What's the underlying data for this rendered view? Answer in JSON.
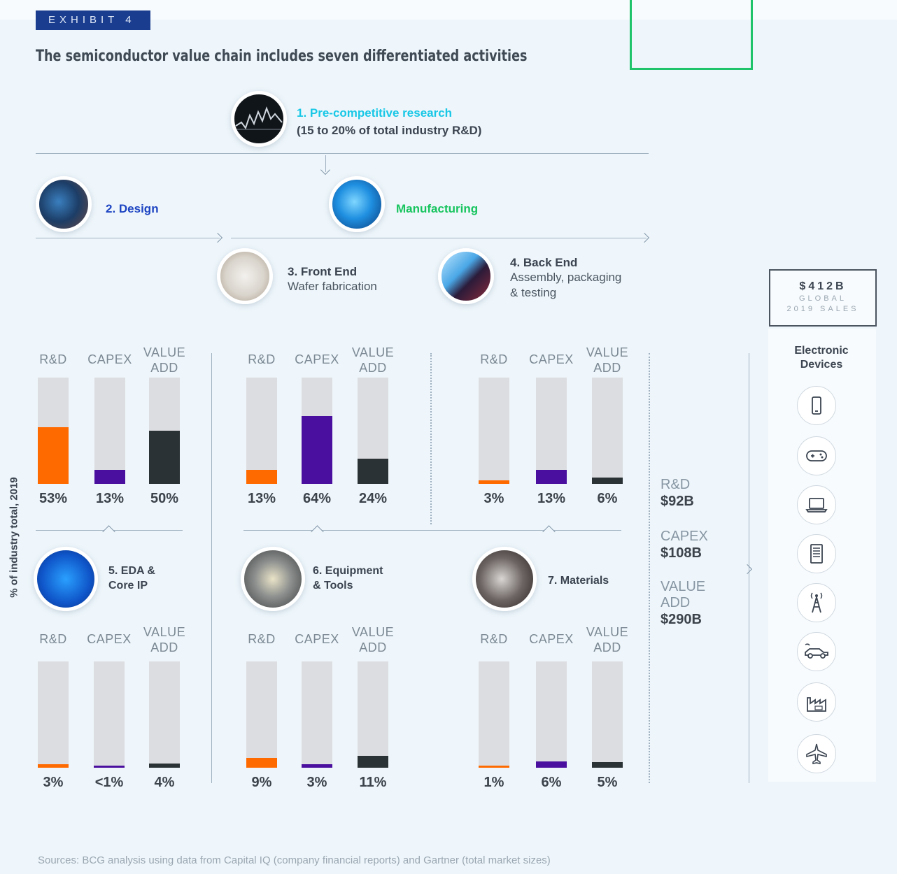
{
  "exhibit": "EXHIBIT 4",
  "title": "The semiconductor value chain includes seven differentiated activities",
  "stage1": {
    "name": "1. Pre-competitive research",
    "sub": "(15 to 20% of total industry R&D)"
  },
  "stage2": {
    "name": "2. Design"
  },
  "manufacturing": "Manufacturing",
  "stage3": {
    "name": "3. Front End",
    "sub": "Wafer fabrication"
  },
  "stage4": {
    "name": "4. Back End",
    "sub1": "Assembly, packaging",
    "sub2": "& testing"
  },
  "stage5": {
    "name1": "5. EDA &",
    "name2": "Core IP"
  },
  "stage6": {
    "name1": "6. Equipment",
    "name2": "& Tools"
  },
  "stage7": {
    "name": "7. Materials"
  },
  "y_axis_label": "% of industry total, 2019",
  "column_labels": {
    "rd": "R&D",
    "capex": "CAPEX",
    "value_add_1": "VALUE",
    "value_add_2": "ADD"
  },
  "colors": {
    "rd": "#ff6a00",
    "capex": "#4a0f9e",
    "value_add": "#2b3235",
    "background_bar": "#dcdde0",
    "manufacturing": "#17c45e",
    "research": "#18c7e6",
    "design": "#1d44c2"
  },
  "chart_data": [
    {
      "type": "bar",
      "panel": "2. Design",
      "categories": [
        "R&D",
        "CAPEX",
        "VALUE ADD"
      ],
      "values": [
        53,
        13,
        50
      ],
      "labels": [
        "53%",
        "13%",
        "50%"
      ],
      "ylim": [
        0,
        100
      ]
    },
    {
      "type": "bar",
      "panel": "3. Front End",
      "categories": [
        "R&D",
        "CAPEX",
        "VALUE ADD"
      ],
      "values": [
        13,
        64,
        24
      ],
      "labels": [
        "13%",
        "64%",
        "24%"
      ],
      "ylim": [
        0,
        100
      ]
    },
    {
      "type": "bar",
      "panel": "4. Back End",
      "categories": [
        "R&D",
        "CAPEX",
        "VALUE ADD"
      ],
      "values": [
        3,
        13,
        6
      ],
      "labels": [
        "3%",
        "13%",
        "6%"
      ],
      "ylim": [
        0,
        100
      ]
    },
    {
      "type": "bar",
      "panel": "5. EDA & Core IP",
      "categories": [
        "R&D",
        "CAPEX",
        "VALUE ADD"
      ],
      "values": [
        3,
        0.5,
        4
      ],
      "labels": [
        "3%",
        "<1%",
        "4%"
      ],
      "ylim": [
        0,
        100
      ]
    },
    {
      "type": "bar",
      "panel": "6. Equipment & Tools",
      "categories": [
        "R&D",
        "CAPEX",
        "VALUE ADD"
      ],
      "values": [
        9,
        3,
        11
      ],
      "labels": [
        "9%",
        "3%",
        "11%"
      ],
      "ylim": [
        0,
        100
      ]
    },
    {
      "type": "bar",
      "panel": "7. Materials",
      "categories": [
        "R&D",
        "CAPEX",
        "VALUE ADD"
      ],
      "values": [
        1,
        6,
        5
      ],
      "labels": [
        "1%",
        "6%",
        "5%"
      ],
      "ylim": [
        0,
        100
      ]
    }
  ],
  "totals": {
    "rd_label": "R&D",
    "rd_value": "$92B",
    "capex_label": "CAPEX",
    "capex_value": "$108B",
    "va_label1": "VALUE",
    "va_label2": "ADD",
    "va_value": "$290B"
  },
  "sales": {
    "amount": "$412B",
    "line1": "GLOBAL",
    "line2": "2019 SALES"
  },
  "devices_title1": "Electronic",
  "devices_title2": "Devices",
  "device_icons": [
    "smartphone-icon",
    "gamepad-icon",
    "laptop-icon",
    "server-icon",
    "antenna-tower-icon",
    "electric-car-icon",
    "factory-icon",
    "airplane-icon"
  ],
  "source": "Sources: BCG analysis using data from Capital IQ (company financial reports) and Gartner (total market sizes)"
}
